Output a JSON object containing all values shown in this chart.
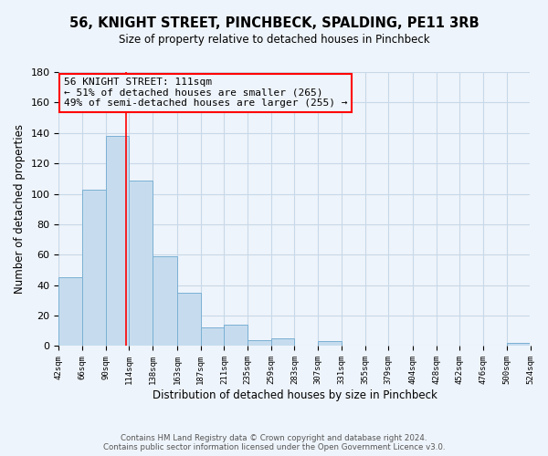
{
  "title": "56, KNIGHT STREET, PINCHBECK, SPALDING, PE11 3RB",
  "subtitle": "Size of property relative to detached houses in Pinchbeck",
  "xlabel": "Distribution of detached houses by size in Pinchbeck",
  "ylabel": "Number of detached properties",
  "bin_edges": [
    42,
    66,
    90,
    114,
    138,
    163,
    187,
    211,
    235,
    259,
    283,
    307,
    331,
    355,
    379,
    404,
    428,
    452,
    476,
    500,
    524
  ],
  "bin_counts": [
    45,
    103,
    138,
    109,
    59,
    35,
    12,
    14,
    4,
    5,
    0,
    3,
    0,
    0,
    0,
    0,
    0,
    0,
    0,
    2
  ],
  "bar_color": "#c6dcee",
  "bar_edgecolor": "#7ab0d4",
  "vline_x": 111,
  "vline_color": "red",
  "annotation_line1": "56 KNIGHT STREET: 111sqm",
  "annotation_line2": "← 51% of detached houses are smaller (265)",
  "annotation_line3": "49% of semi-detached houses are larger (255) →",
  "annotation_box_edgecolor": "red",
  "ylim": [
    0,
    180
  ],
  "yticks": [
    0,
    20,
    40,
    60,
    80,
    100,
    120,
    140,
    160,
    180
  ],
  "xtick_labels": [
    "42sqm",
    "66sqm",
    "90sqm",
    "114sqm",
    "138sqm",
    "163sqm",
    "187sqm",
    "211sqm",
    "235sqm",
    "259sqm",
    "283sqm",
    "307sqm",
    "331sqm",
    "355sqm",
    "379sqm",
    "404sqm",
    "428sqm",
    "452sqm",
    "476sqm",
    "500sqm",
    "524sqm"
  ],
  "footer_text": "Contains HM Land Registry data © Crown copyright and database right 2024.\nContains public sector information licensed under the Open Government Licence v3.0.",
  "background_color": "#eef4fb"
}
